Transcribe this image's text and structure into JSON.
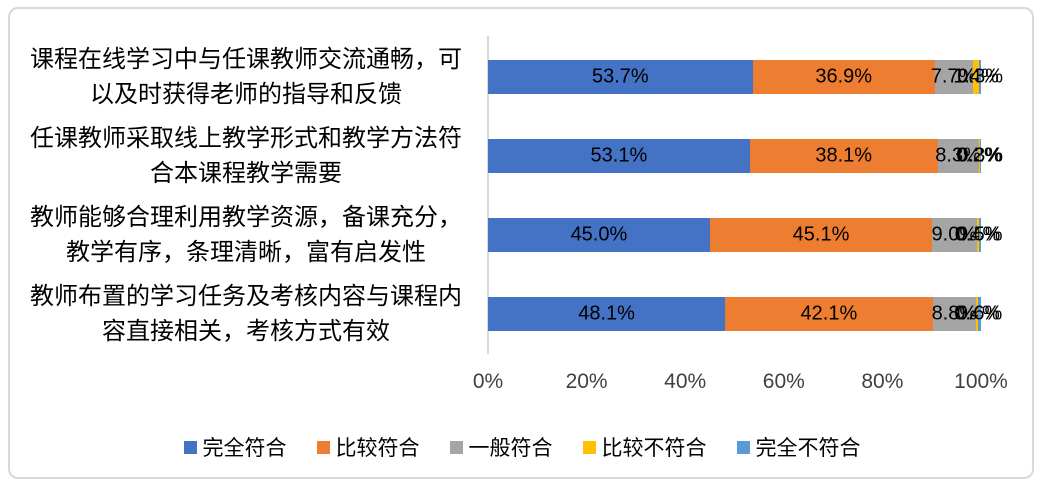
{
  "chart_data": {
    "type": "bar",
    "orientation": "horizontal",
    "stacked": true,
    "title": "",
    "categories": [
      "课程在线学习中与任课教师交流通畅，可以及时获得老师的指导和反馈",
      "任课教师采取线上教学形式和教学方法符合本课程教学需要",
      "教师能够合理利用教学资源，备课充分，教学有序，条理清晰，富有启发性",
      "教师布置的学习任务及考核内容与课程内容直接相关，考核方式有效"
    ],
    "series": [
      {
        "name": "完全符合",
        "color": "#4472C4",
        "values": [
          53.7,
          53.1,
          45.0,
          48.1
        ]
      },
      {
        "name": "比较符合",
        "color": "#ED7D31",
        "values": [
          36.9,
          38.1,
          45.1,
          42.1
        ]
      },
      {
        "name": "一般符合",
        "color": "#A5A5A5",
        "values": [
          7.7,
          8.3,
          9.0,
          8.8
        ]
      },
      {
        "name": "比较不符合",
        "color": "#FFC000",
        "values": [
          1.4,
          0.2,
          0.4,
          0.4
        ]
      },
      {
        "name": "完全不符合",
        "color": "#5B9BD5",
        "values": [
          0.3,
          0.3,
          0.5,
          0.6
        ]
      }
    ],
    "data_label_format": "0.0%",
    "x_ticks": [
      "0%",
      "20%",
      "40%",
      "60%",
      "80%",
      "100%"
    ],
    "xlim": [
      0,
      100
    ],
    "grid": false,
    "legend_position": "bottom",
    "axis_color": "#d9d9d9"
  }
}
